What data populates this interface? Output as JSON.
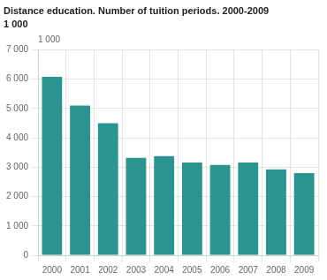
{
  "chart_data": {
    "type": "bar",
    "title": "Distance education. Number of tuition periods. 2000-2009",
    "subtitle": "1 000",
    "ylabel": "1 000",
    "categories": [
      "2000",
      "2001",
      "2002",
      "2003",
      "2004",
      "2005",
      "2006",
      "2007",
      "2008",
      "2009"
    ],
    "values": [
      6080,
      5100,
      4500,
      3320,
      3380,
      3160,
      3080,
      3160,
      2930,
      2800
    ],
    "color": "#2a9490",
    "ylim": [
      0,
      7000
    ],
    "yticks": [
      0,
      {
        "value": 1000,
        "label": "1 000"
      },
      {
        "value": 2000,
        "label": "2 000"
      },
      {
        "value": 3000,
        "label": "3 000"
      },
      {
        "value": 4000,
        "label": "4 000"
      },
      {
        "value": 5000,
        "label": "5 000"
      },
      {
        "value": 6000,
        "label": "6 000"
      },
      {
        "value": 7000,
        "label": "7 000"
      }
    ],
    "grid": true
  }
}
